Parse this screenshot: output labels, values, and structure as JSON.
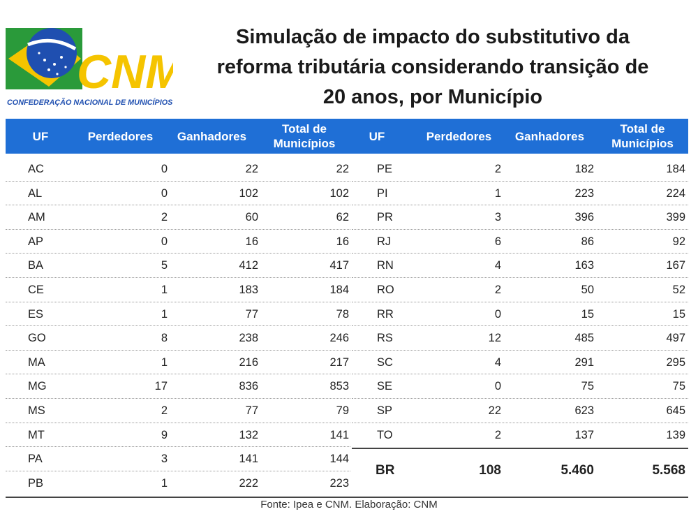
{
  "logo": {
    "acronym": "CNM",
    "full_name": "CONFEDERAÇÃO NACIONAL DE MUNICÍPIOS"
  },
  "title": {
    "line1": "Simulação de impacto do substitutivo da",
    "line2": "reforma tributária considerando transição de",
    "line3": "20 anos, por Município"
  },
  "headers": {
    "uf": "UF",
    "perdedores": "Perdedores",
    "ganhadores": "Ganhadores",
    "total_line1": "Total de",
    "total_line2": "Municípios"
  },
  "left_rows": [
    [
      "AC",
      "0",
      "22",
      "22"
    ],
    [
      "AL",
      "0",
      "102",
      "102"
    ],
    [
      "AM",
      "2",
      "60",
      "62"
    ],
    [
      "AP",
      "0",
      "16",
      "16"
    ],
    [
      "BA",
      "5",
      "412",
      "417"
    ],
    [
      "CE",
      "1",
      "183",
      "184"
    ],
    [
      "ES",
      "1",
      "77",
      "78"
    ],
    [
      "GO",
      "8",
      "238",
      "246"
    ],
    [
      "MA",
      "1",
      "216",
      "217"
    ],
    [
      "MG",
      "17",
      "836",
      "853"
    ],
    [
      "MS",
      "2",
      "77",
      "79"
    ],
    [
      "MT",
      "9",
      "132",
      "141"
    ],
    [
      "PA",
      "3",
      "141",
      "144"
    ],
    [
      "PB",
      "1",
      "222",
      "223"
    ]
  ],
  "right_rows": [
    [
      "PE",
      "2",
      "182",
      "184"
    ],
    [
      "PI",
      "1",
      "223",
      "224"
    ],
    [
      "PR",
      "3",
      "396",
      "399"
    ],
    [
      "RJ",
      "6",
      "86",
      "92"
    ],
    [
      "RN",
      "4",
      "163",
      "167"
    ],
    [
      "RO",
      "2",
      "50",
      "52"
    ],
    [
      "RR",
      "0",
      "15",
      "15"
    ],
    [
      "RS",
      "12",
      "485",
      "497"
    ],
    [
      "SC",
      "4",
      "291",
      "295"
    ],
    [
      "SE",
      "0",
      "75",
      "75"
    ],
    [
      "SP",
      "22",
      "623",
      "645"
    ],
    [
      "TO",
      "2",
      "137",
      "139"
    ]
  ],
  "total_row": {
    "uf": "BR",
    "perdedores": "108",
    "ganhadores": "5.460",
    "total": "5.568"
  },
  "source": "Fonte: Ipea e CNM. Elaboração: CNM",
  "colors": {
    "header_bg": "#1f6fd6",
    "logo_green": "#2a9a3a",
    "logo_yellow": "#f5c400",
    "logo_blue": "#1f4fb0"
  }
}
